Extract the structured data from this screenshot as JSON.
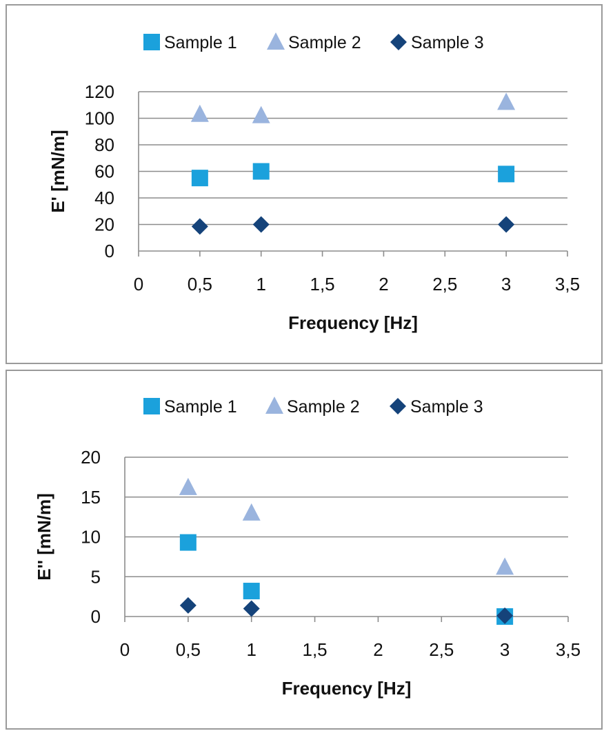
{
  "chart_data": [
    {
      "type": "scatter",
      "title": "",
      "xlabel": "Frequency [Hz]",
      "ylabel": "E' [mN/m]",
      "xlim": [
        0,
        3.5
      ],
      "ylim": [
        0,
        120
      ],
      "x_ticks": [
        "0",
        "0,5",
        "1",
        "1,5",
        "2",
        "2,5",
        "3",
        "3,5"
      ],
      "y_ticks": [
        "0",
        "20",
        "40",
        "60",
        "80",
        "100",
        "120"
      ],
      "grid": "horizontal",
      "legend": "top",
      "series": [
        {
          "name": "Sample 1",
          "marker": "square",
          "color": "#1ba1dc",
          "points": [
            {
              "x": 0.5,
              "y": 55
            },
            {
              "x": 1,
              "y": 60
            },
            {
              "x": 3,
              "y": 58
            }
          ]
        },
        {
          "name": "Sample 2",
          "marker": "triangle",
          "color": "#9ab4de",
          "points": [
            {
              "x": 0.5,
              "y": 103
            },
            {
              "x": 1,
              "y": 102
            },
            {
              "x": 3,
              "y": 112
            }
          ]
        },
        {
          "name": "Sample 3",
          "marker": "diamond",
          "color": "#15437a",
          "points": [
            {
              "x": 0.5,
              "y": 18.5
            },
            {
              "x": 1,
              "y": 20
            },
            {
              "x": 3,
              "y": 20
            }
          ]
        }
      ]
    },
    {
      "type": "scatter",
      "title": "",
      "xlabel": "Frequency [Hz]",
      "ylabel": "E'' [mN/m]",
      "xlim": [
        0,
        3.5
      ],
      "ylim": [
        0,
        20
      ],
      "x_ticks": [
        "0",
        "0,5",
        "1",
        "1,5",
        "2",
        "2,5",
        "3",
        "3,5"
      ],
      "y_ticks": [
        "0",
        "5",
        "10",
        "15",
        "20"
      ],
      "grid": "horizontal",
      "legend": "top",
      "series": [
        {
          "name": "Sample 1",
          "marker": "square",
          "color": "#1ba1dc",
          "points": [
            {
              "x": 0.5,
              "y": 9.3
            },
            {
              "x": 1,
              "y": 3.2
            },
            {
              "x": 3,
              "y": 0
            }
          ]
        },
        {
          "name": "Sample 2",
          "marker": "triangle",
          "color": "#9ab4de",
          "points": [
            {
              "x": 0.5,
              "y": 16.2
            },
            {
              "x": 1,
              "y": 13
            },
            {
              "x": 3,
              "y": 6.2
            }
          ]
        },
        {
          "name": "Sample 3",
          "marker": "diamond",
          "color": "#15437a",
          "points": [
            {
              "x": 0.5,
              "y": 1.4
            },
            {
              "x": 1,
              "y": 1
            },
            {
              "x": 3,
              "y": 0.1
            }
          ]
        }
      ]
    }
  ]
}
